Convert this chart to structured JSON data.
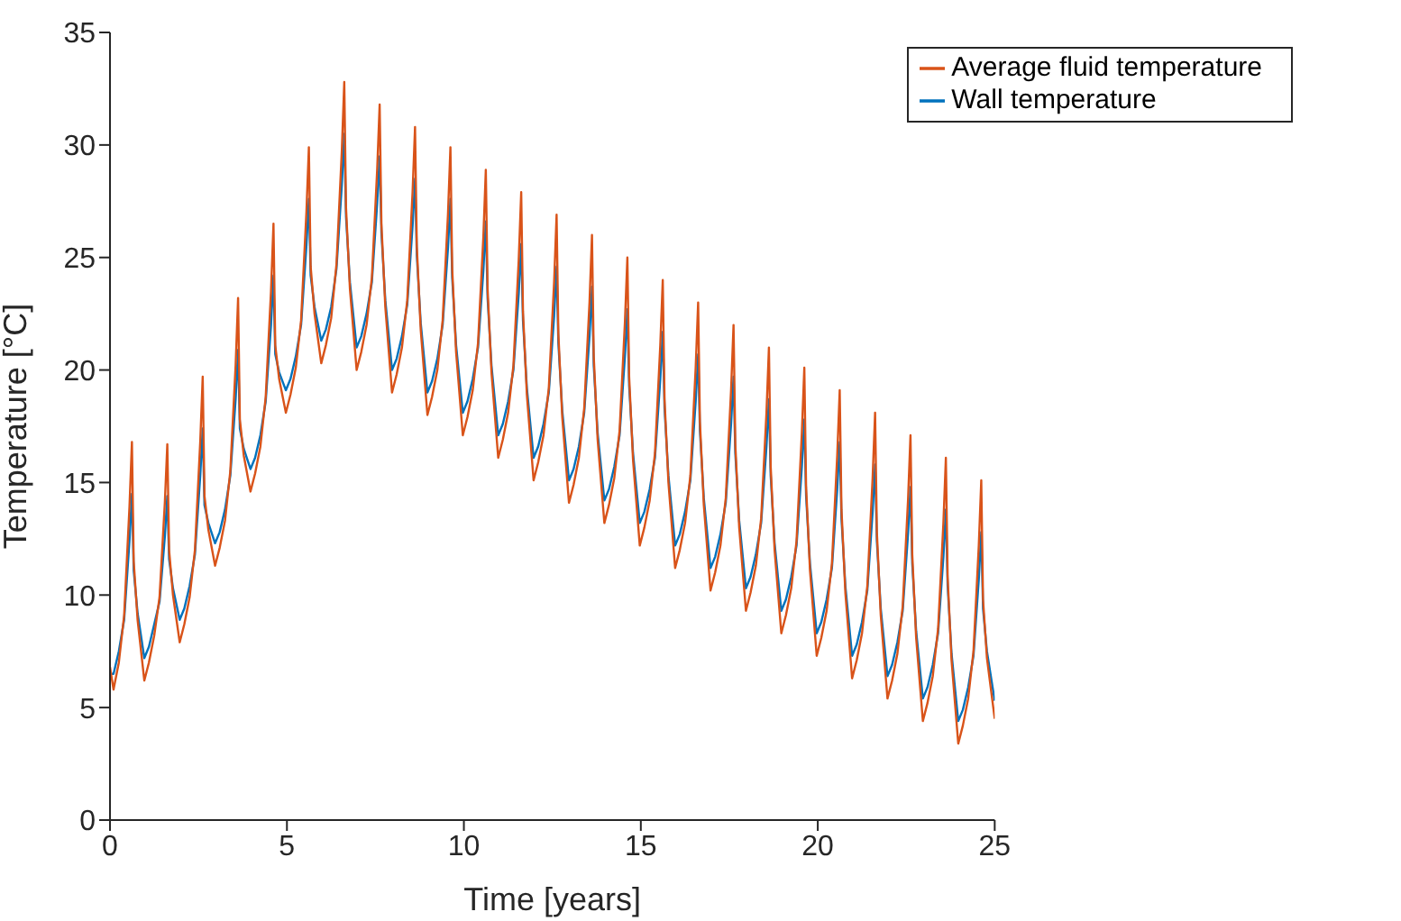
{
  "chart_data": {
    "type": "line",
    "xlabel": "Time [years]",
    "ylabel": "Temperature [°C]",
    "xlim": [
      0,
      25
    ],
    "xticks": [
      0,
      5,
      10,
      15,
      20,
      25
    ],
    "ylim": [
      0,
      35
    ],
    "yticks": [
      0,
      5,
      10,
      15,
      20,
      25,
      30,
      35
    ],
    "grid": false,
    "legend": "top right",
    "line_style": "solid",
    "marker": "none",
    "x": [
      0,
      0.1,
      0.25,
      0.4,
      0.55,
      0.62,
      0.67,
      0.78,
      0.97,
      1.1,
      1.25,
      1.4,
      1.55,
      1.62,
      1.67,
      1.78,
      1.97,
      2.1,
      2.25,
      2.4,
      2.55,
      2.62,
      2.67,
      2.78,
      2.97,
      3.1,
      3.25,
      3.4,
      3.55,
      3.62,
      3.67,
      3.78,
      3.97,
      4.1,
      4.25,
      4.4,
      4.55,
      4.62,
      4.67,
      4.78,
      4.97,
      5.1,
      5.25,
      5.4,
      5.55,
      5.62,
      5.67,
      5.78,
      5.97,
      6.1,
      6.25,
      6.4,
      6.55,
      6.62,
      6.67,
      6.78,
      6.97,
      7.1,
      7.25,
      7.4,
      7.55,
      7.62,
      7.67,
      7.78,
      7.97,
      8.1,
      8.25,
      8.4,
      8.55,
      8.62,
      8.67,
      8.78,
      8.97,
      9.1,
      9.25,
      9.4,
      9.55,
      9.62,
      9.67,
      9.78,
      9.97,
      10.1,
      10.25,
      10.4,
      10.55,
      10.62,
      10.67,
      10.78,
      10.97,
      11.1,
      11.25,
      11.4,
      11.55,
      11.62,
      11.67,
      11.78,
      11.97,
      12.1,
      12.25,
      12.4,
      12.55,
      12.62,
      12.67,
      12.78,
      12.97,
      13.1,
      13.25,
      13.4,
      13.55,
      13.62,
      13.67,
      13.78,
      13.97,
      14.1,
      14.25,
      14.4,
      14.55,
      14.62,
      14.67,
      14.78,
      14.97,
      15.1,
      15.25,
      15.4,
      15.55,
      15.62,
      15.67,
      15.78,
      15.97,
      16.1,
      16.25,
      16.4,
      16.55,
      16.62,
      16.67,
      16.78,
      16.97,
      17.1,
      17.25,
      17.4,
      17.55,
      17.62,
      17.67,
      17.78,
      17.97,
      18.1,
      18.25,
      18.4,
      18.55,
      18.62,
      18.67,
      18.78,
      18.97,
      19.1,
      19.25,
      19.4,
      19.55,
      19.62,
      19.67,
      19.78,
      19.97,
      20.1,
      20.25,
      20.4,
      20.55,
      20.62,
      20.67,
      20.78,
      20.97,
      21.1,
      21.25,
      21.4,
      21.55,
      21.62,
      21.67,
      21.78,
      21.97,
      22.1,
      22.25,
      22.4,
      22.55,
      22.62,
      22.67,
      22.78,
      22.97,
      23.1,
      23.25,
      23.4,
      23.55,
      23.62,
      23.67,
      23.78,
      23.97,
      24.1,
      24.25,
      24.4,
      24.55,
      24.62,
      24.67,
      24.78,
      25
    ],
    "series": [
      {
        "name": "Wall temperature",
        "color": "#0072bd",
        "values": [
          6.5,
          6.5,
          7.5,
          8.9,
          12.4,
          14.5,
          11.1,
          9.2,
          7.2,
          7.7,
          8.7,
          9.7,
          12.6,
          14.4,
          11.6,
          10.3,
          8.9,
          9.4,
          10.4,
          11.8,
          15.3,
          17.4,
          14.0,
          13.2,
          12.3,
          12.8,
          13.8,
          15.3,
          18.7,
          20.9,
          17.4,
          16.5,
          15.6,
          16.1,
          17.1,
          18.6,
          22.0,
          24.2,
          20.7,
          19.9,
          19.1,
          19.6,
          20.6,
          22.0,
          25.5,
          27.6,
          24.2,
          22.8,
          21.3,
          21.8,
          22.8,
          24.5,
          28.2,
          30.5,
          26.8,
          23.9,
          21.0,
          21.5,
          22.5,
          23.9,
          27.4,
          29.5,
          26.1,
          23.1,
          20.0,
          20.5,
          21.5,
          22.9,
          26.4,
          28.5,
          25.1,
          22.1,
          19.0,
          19.5,
          20.5,
          22.0,
          25.4,
          27.6,
          24.1,
          21.1,
          18.1,
          18.6,
          19.6,
          21.0,
          24.4,
          26.6,
          23.2,
          20.2,
          17.1,
          17.6,
          18.6,
          20.0,
          23.4,
          25.6,
          22.2,
          19.2,
          16.1,
          16.6,
          17.6,
          19.0,
          22.4,
          24.6,
          21.2,
          18.2,
          15.1,
          15.6,
          16.6,
          18.1,
          21.5,
          23.7,
          20.2,
          17.2,
          14.2,
          14.7,
          15.7,
          17.1,
          20.6,
          22.7,
          19.3,
          16.3,
          13.2,
          13.7,
          14.7,
          16.1,
          19.6,
          21.7,
          18.3,
          15.3,
          12.2,
          12.7,
          13.7,
          15.1,
          18.6,
          20.7,
          17.3,
          14.3,
          11.2,
          11.7,
          12.7,
          14.1,
          17.6,
          19.7,
          16.3,
          13.3,
          10.3,
          10.8,
          11.8,
          13.2,
          16.6,
          18.7,
          15.3,
          12.3,
          9.3,
          9.8,
          10.8,
          12.2,
          15.7,
          17.8,
          14.4,
          11.4,
          8.3,
          8.8,
          9.8,
          11.2,
          14.7,
          16.8,
          13.4,
          10.4,
          7.3,
          7.8,
          8.8,
          10.2,
          13.7,
          15.8,
          12.4,
          9.4,
          6.4,
          6.9,
          7.9,
          9.3,
          12.7,
          14.8,
          11.4,
          8.4,
          5.4,
          5.9,
          6.9,
          8.3,
          11.7,
          13.8,
          10.4,
          7.4,
          4.4,
          4.9,
          5.9,
          7.3,
          10.7,
          12.8,
          9.4,
          7.5,
          5.3
        ]
      },
      {
        "name": "Average fluid temperature",
        "color": "#d95319",
        "values": [
          6.8,
          5.8,
          7.0,
          9.1,
          13.9,
          16.8,
          11.5,
          8.9,
          6.2,
          7.0,
          8.2,
          9.9,
          14.1,
          16.7,
          12.0,
          10.0,
          7.9,
          8.7,
          9.9,
          12.0,
          16.8,
          19.7,
          14.4,
          12.9,
          11.3,
          12.1,
          13.3,
          15.5,
          20.2,
          23.2,
          17.8,
          16.2,
          14.6,
          15.4,
          16.6,
          18.8,
          23.5,
          26.5,
          21.1,
          19.6,
          18.1,
          18.9,
          20.1,
          22.2,
          27.0,
          29.9,
          24.6,
          22.5,
          20.3,
          21.1,
          22.3,
          24.7,
          29.7,
          32.8,
          27.2,
          23.6,
          20.0,
          20.8,
          22.0,
          24.1,
          28.9,
          31.8,
          26.5,
          22.8,
          19.0,
          19.8,
          21.0,
          23.1,
          27.9,
          30.8,
          25.5,
          21.8,
          18.0,
          18.8,
          20.0,
          22.2,
          26.9,
          29.9,
          24.5,
          20.8,
          17.1,
          17.9,
          19.1,
          21.2,
          25.9,
          28.9,
          23.6,
          19.9,
          16.1,
          16.9,
          18.1,
          20.2,
          24.9,
          27.9,
          22.6,
          18.9,
          15.1,
          15.9,
          17.1,
          19.2,
          23.9,
          26.9,
          21.6,
          17.9,
          14.1,
          14.9,
          16.1,
          18.3,
          23.0,
          26.0,
          20.6,
          16.9,
          13.2,
          14.0,
          15.2,
          17.3,
          22.1,
          25.0,
          19.7,
          16.0,
          12.2,
          13.0,
          14.2,
          16.3,
          21.1,
          24.0,
          18.7,
          15.0,
          11.2,
          12.0,
          13.2,
          15.3,
          20.1,
          23.0,
          17.7,
          14.0,
          10.2,
          11.0,
          12.2,
          14.3,
          19.1,
          22.0,
          16.7,
          13.0,
          9.3,
          10.1,
          11.3,
          13.4,
          18.1,
          21.0,
          15.7,
          12.0,
          8.3,
          9.1,
          10.3,
          12.4,
          17.2,
          20.1,
          14.8,
          11.1,
          7.3,
          8.1,
          9.3,
          11.4,
          16.2,
          19.1,
          13.8,
          10.1,
          6.3,
          7.1,
          8.3,
          10.4,
          15.2,
          18.1,
          12.8,
          9.1,
          5.4,
          6.2,
          7.4,
          9.5,
          14.2,
          17.1,
          11.8,
          8.1,
          4.4,
          5.2,
          6.4,
          8.5,
          13.2,
          16.1,
          10.8,
          7.1,
          3.4,
          4.2,
          5.4,
          7.5,
          12.2,
          15.1,
          9.8,
          7.2,
          4.5
        ]
      }
    ]
  }
}
